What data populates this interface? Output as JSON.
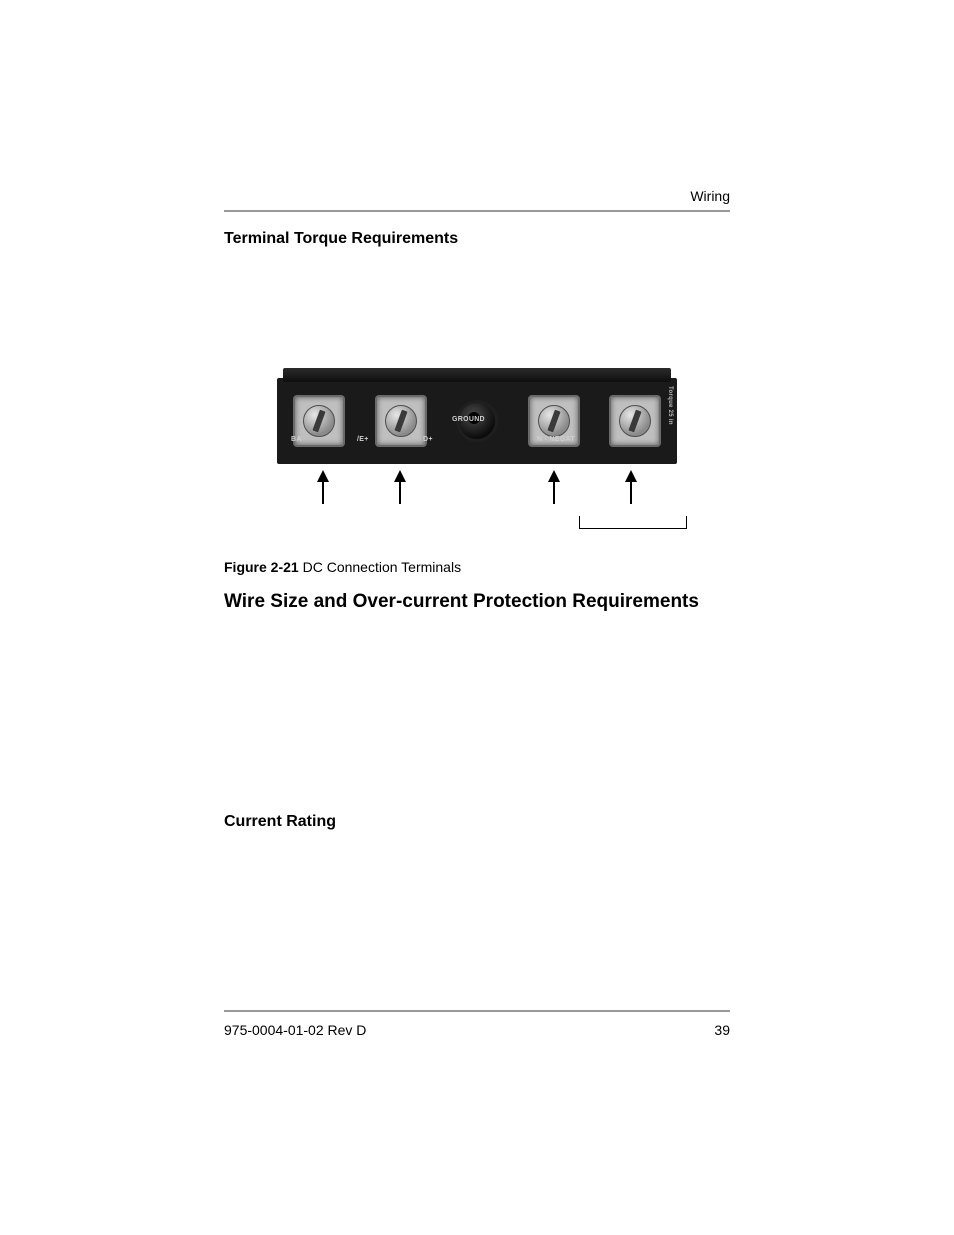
{
  "header": {
    "section_label": "Wiring"
  },
  "section1": {
    "heading": "Terminal Torque Requirements"
  },
  "figure": {
    "caption_prefix": "Figure 2-21",
    "caption_text": "DC Connection Terminals",
    "board": {
      "bg_color": "#1a1a1a",
      "terminal_color": "#bfbfbf",
      "labels": {
        "ba": "BA",
        "ve": "/E+",
        "d": "D+",
        "ground": "GROUND",
        "neg": "N - NEGAT",
        "torque": "Torque 25 in"
      }
    }
  },
  "section2": {
    "heading": "Wire Size and Over-current Protection Requirements"
  },
  "section3": {
    "heading": "Current Rating"
  },
  "footer": {
    "doc_id": "975-0004-01-02 Rev D",
    "page_number": "39"
  },
  "colors": {
    "rule": "#999999",
    "text": "#000000",
    "bg": "#ffffff"
  }
}
